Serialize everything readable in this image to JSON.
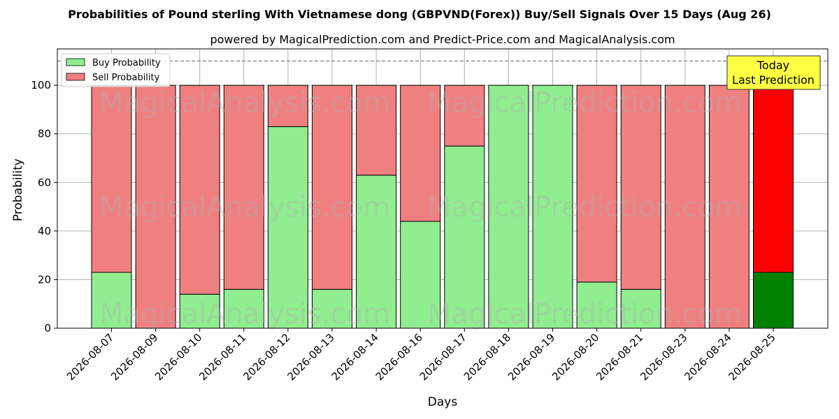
{
  "chart_data": {
    "type": "bar",
    "stacked": true,
    "title": "Probabilities of Pound sterling With Vietnamese dong (GBPVND(Forex)) Buy/Sell Signals Over 15 Days (Aug 26)",
    "subtitle": "powered by MagicalPrediction.com and Predict-Price.com and MagicalAnalysis.com",
    "xlabel": "Days",
    "ylabel": "Probability",
    "ylim": [
      0,
      115
    ],
    "yticks": [
      0,
      20,
      40,
      60,
      80,
      100
    ],
    "reference_line": 110,
    "grid": true,
    "legend_position": "top-left",
    "categories": [
      "2026-08-07",
      "2026-08-09",
      "2026-08-10",
      "2026-08-11",
      "2026-08-12",
      "2026-08-13",
      "2026-08-14",
      "2026-08-16",
      "2026-08-17",
      "2026-08-18",
      "2026-08-19",
      "2026-08-20",
      "2026-08-21",
      "2026-08-23",
      "2026-08-24",
      "2026-08-25"
    ],
    "series": [
      {
        "name": "Buy Probability",
        "color": "#90ee90",
        "values": [
          23,
          0,
          14,
          16,
          83,
          16,
          63,
          44,
          75,
          100,
          100,
          19,
          16,
          0,
          0,
          23
        ]
      },
      {
        "name": "Sell Probability",
        "color": "#f08080",
        "values": [
          77,
          100,
          86,
          84,
          17,
          84,
          37,
          56,
          25,
          0,
          0,
          81,
          84,
          100,
          100,
          77
        ]
      }
    ],
    "highlight": {
      "index": 15,
      "buy_color": "#008000",
      "sell_color": "#ff0000"
    },
    "annotation": {
      "lines": [
        "Today",
        "Last Prediction"
      ],
      "position": "top-right",
      "background": "#ffff44"
    },
    "watermarks": [
      "MagicalAnalysis.com",
      "MagicalPrediction.com"
    ]
  }
}
